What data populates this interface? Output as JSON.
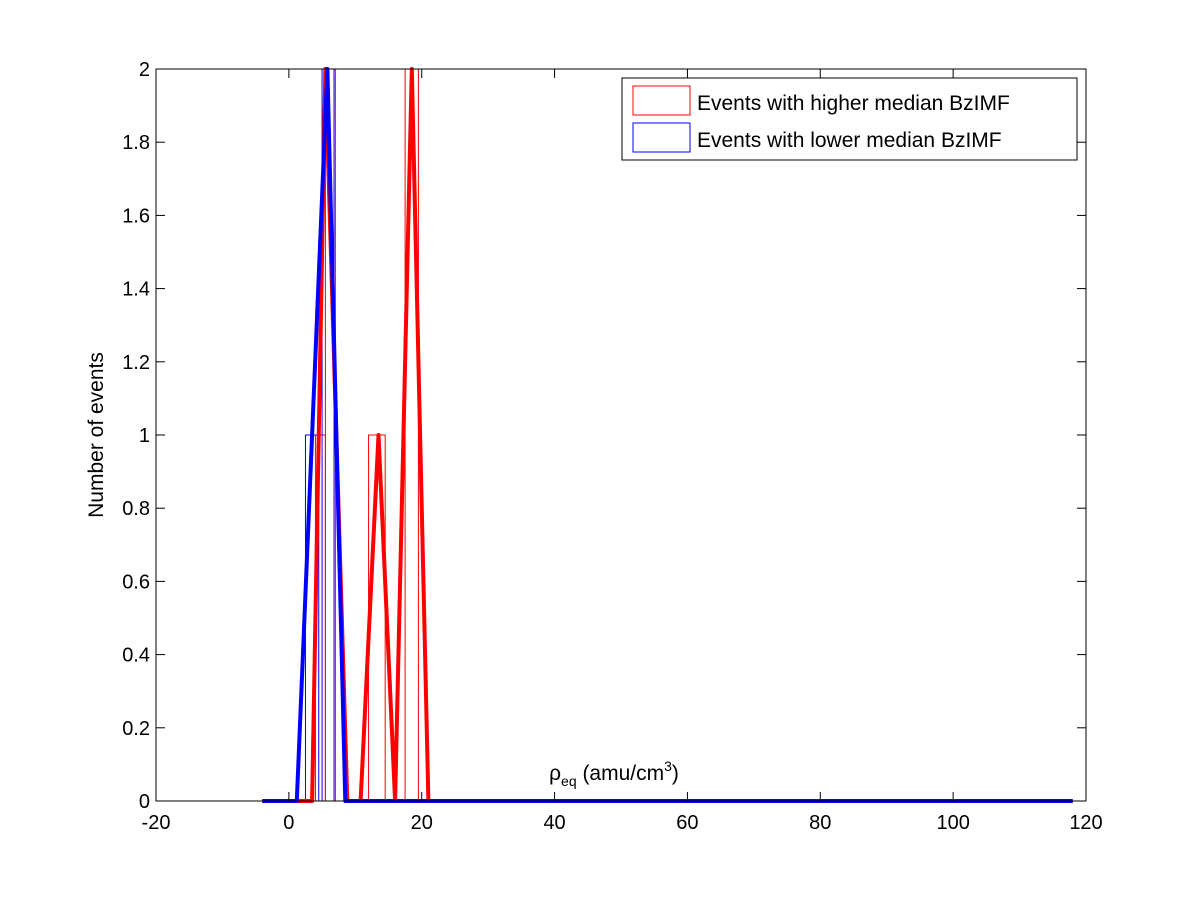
{
  "chart_data": {
    "type": "bar",
    "xlabel_main": "ρ",
    "xlabel_sub": "eq",
    "xlabel_rest": " (amu/cm",
    "xlabel_sup": "3",
    "xlabel_close": ")",
    "ylabel": "Number of events",
    "xlim": [
      -20,
      120
    ],
    "ylim": [
      0,
      2
    ],
    "xticks": [
      "-20",
      "0",
      "20",
      "40",
      "60",
      "80",
      "100",
      "120"
    ],
    "yticks": [
      "0",
      "0.2",
      "0.4",
      "0.6",
      "0.8",
      "1",
      "1.2",
      "1.4",
      "1.6",
      "1.8",
      "2"
    ],
    "legend": "top-right",
    "series": [
      {
        "name": "Events with higher median BzIMF",
        "color": "#ff0000",
        "bars": [
          {
            "x0": 2.5,
            "x1": 4.0,
            "value": 0
          },
          {
            "x0": 4.0,
            "x1": 5.5,
            "value": 1
          },
          {
            "x0": 5.5,
            "x1": 7.0,
            "value": 2
          },
          {
            "x0": 12.0,
            "x1": 14.5,
            "value": 1
          },
          {
            "x0": 17.5,
            "x1": 19.5,
            "value": 2
          }
        ],
        "polygon": {
          "x": [
            -4,
            3.5,
            5.5,
            8.8,
            10.8,
            13.5,
            16.0,
            18.5,
            21.0,
            118
          ],
          "y": [
            0,
            0,
            2,
            0,
            0,
            1,
            0,
            2,
            0,
            0
          ]
        }
      },
      {
        "name": "Events with lower median BzIMF",
        "color": "#0000ff",
        "bars": [
          {
            "x0": 2.5,
            "x1": 4.5,
            "value": 1
          },
          {
            "x0": 5.0,
            "x1": 6.8,
            "value": 2
          }
        ],
        "polygon": {
          "x": [
            -4,
            1.2,
            3.5,
            5.8,
            8.5,
            118
          ],
          "y": [
            0,
            0,
            1,
            2,
            0,
            0
          ]
        }
      }
    ]
  }
}
